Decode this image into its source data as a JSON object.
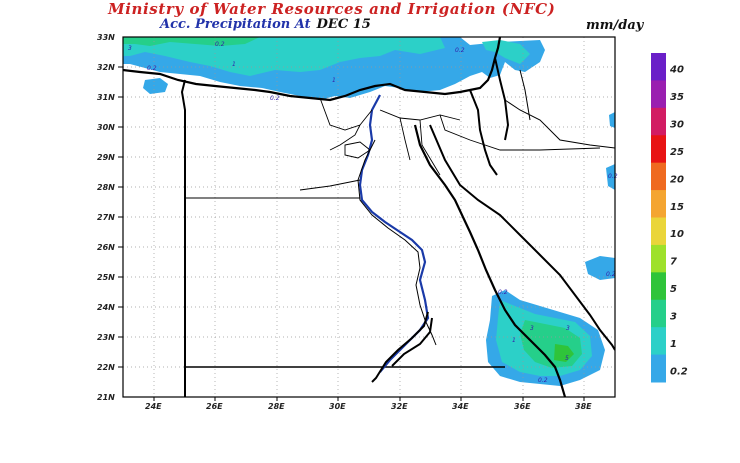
{
  "header": {
    "title": "Ministry of Water Resources and Irrigation (NFC)",
    "subtitle": "Acc. Precipitation  At",
    "date": "DEC 15",
    "units": "mm/day"
  },
  "map": {
    "lat_labels": [
      "33N",
      "32N",
      "31N",
      "30N",
      "29N",
      "28N",
      "27N",
      "26N",
      "25N",
      "24N",
      "23N",
      "22N",
      "21N"
    ],
    "lon_labels": [
      "24E",
      "26E",
      "28E",
      "30E",
      "32E",
      "34E",
      "36E",
      "38E"
    ],
    "lat_range": [
      21,
      33
    ],
    "lon_range": [
      23,
      39
    ]
  },
  "legend": {
    "levels": [
      {
        "label": "40",
        "color": "#6a1fc8"
      },
      {
        "label": "35",
        "color": "#9a1fb0"
      },
      {
        "label": "30",
        "color": "#d21c63"
      },
      {
        "label": "25",
        "color": "#e81414"
      },
      {
        "label": "20",
        "color": "#ef6a20"
      },
      {
        "label": "15",
        "color": "#f4a531"
      },
      {
        "label": "10",
        "color": "#ead53a"
      },
      {
        "label": "7",
        "color": "#9ee12b"
      },
      {
        "label": "5",
        "color": "#2fc43a"
      },
      {
        "label": "3",
        "color": "#25cf8a"
      },
      {
        "label": "1",
        "color": "#2cd0c8"
      },
      {
        "label": "0.2",
        "color": "#35a8e8"
      }
    ]
  },
  "contour_labels": [
    "0.2",
    "1",
    "3",
    "0.2",
    "0.2",
    "1",
    "0.2",
    "3",
    "1",
    "3",
    "5",
    "0.2",
    "0.2",
    "0.2",
    "0.2"
  ]
}
